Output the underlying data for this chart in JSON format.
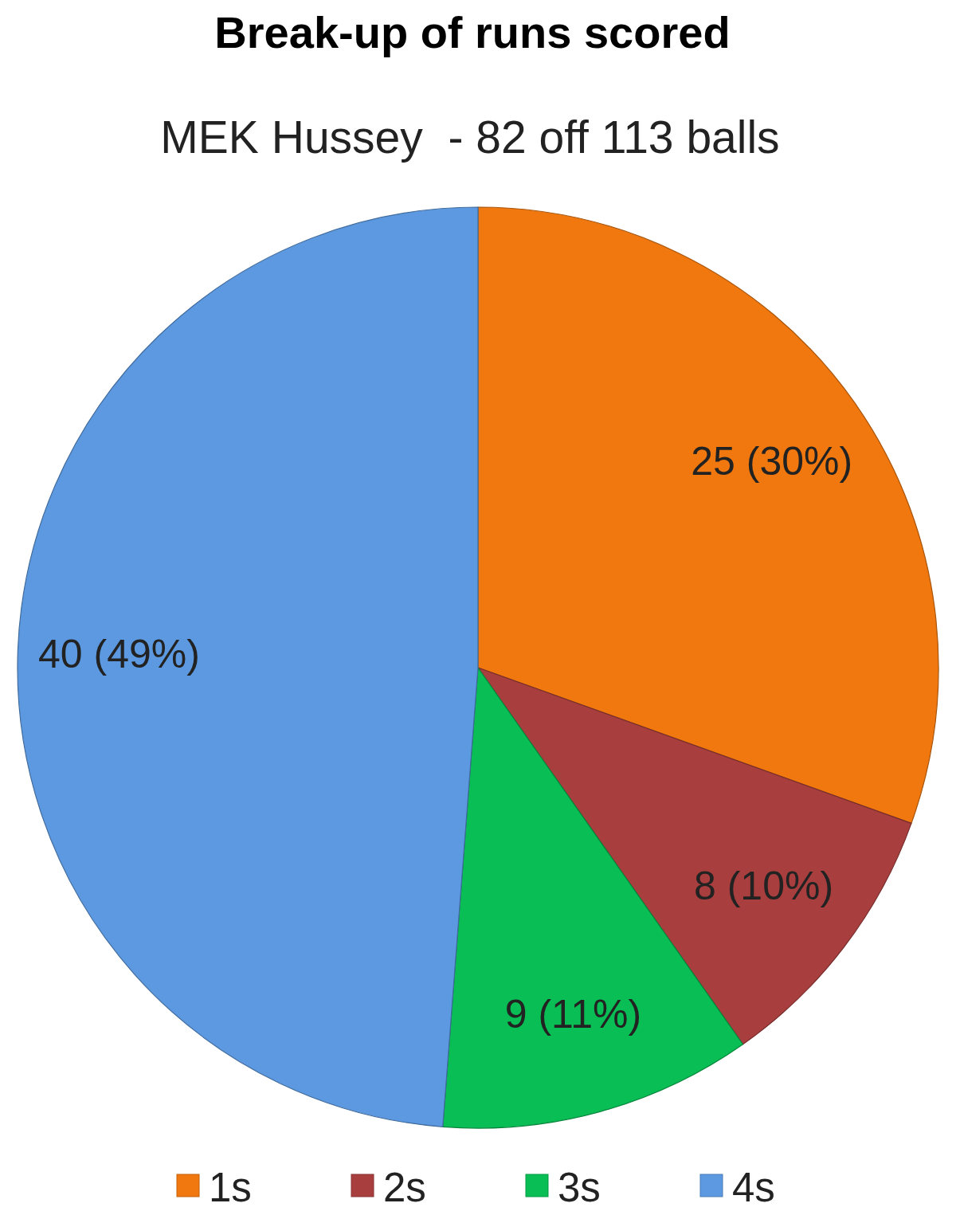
{
  "chart_data": {
    "type": "pie",
    "title": "Break-up of runs scored",
    "subtitle": "MEK Hussey  - 82 off 113 balls",
    "categories": [
      "1s",
      "2s",
      "3s",
      "4s"
    ],
    "values": [
      25,
      8,
      9,
      40
    ],
    "colors": [
      "#f0780f",
      "#a83f3e",
      "#09be55",
      "#5c99e0"
    ],
    "value_labels": [
      "25 (30%)",
      "8 (10%)",
      "9 (11%)",
      "40 (49%)"
    ],
    "legend": "bottom"
  }
}
